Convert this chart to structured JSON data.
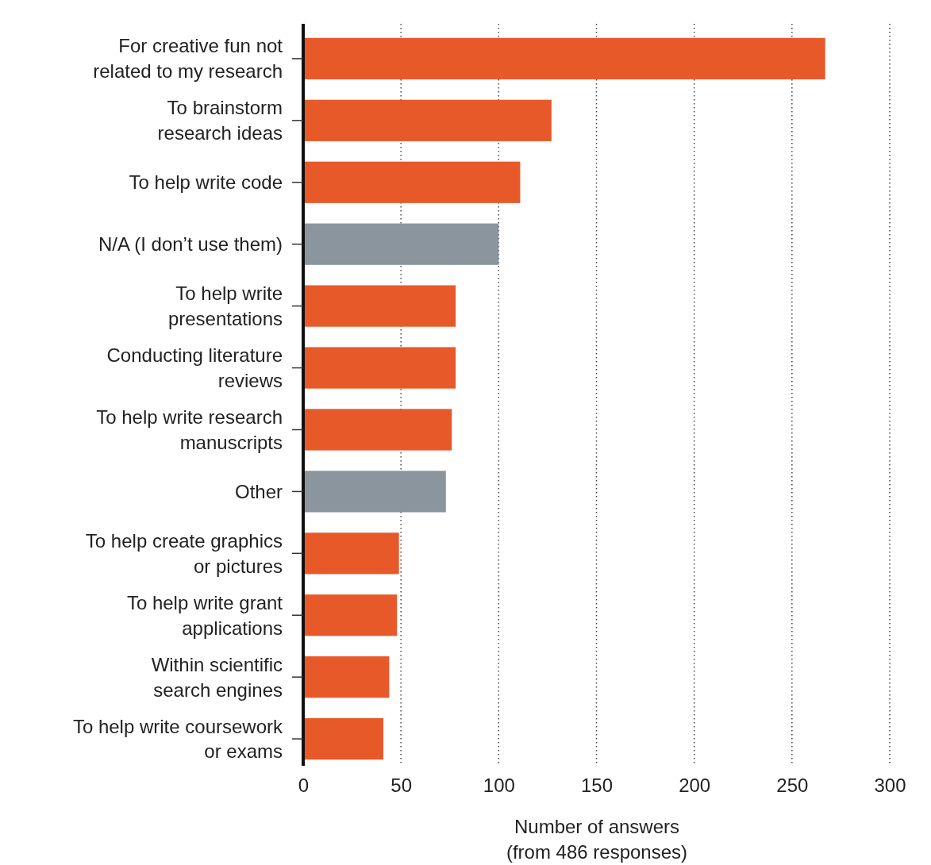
{
  "chart_data": {
    "type": "bar",
    "orientation": "horizontal",
    "categories": [
      "For creative fun not\nrelated to my research",
      "To brainstorm\nresearch ideas",
      "To help write code",
      "N/A (I don’t use them)",
      "To help write\npresentations",
      "Conducting literature\nreviews",
      "To help write research\nmanuscripts",
      "Other",
      "To help create graphics\nor pictures",
      "To help write grant\napplications",
      "Within scientific\nsearch engines",
      "To help write coursework\nor exams"
    ],
    "values": [
      267,
      127,
      111,
      100,
      78,
      78,
      76,
      73,
      49,
      48,
      44,
      41
    ],
    "colors": [
      "#e8592a",
      "#e8592a",
      "#e8592a",
      "#8a959e",
      "#e8592a",
      "#e8592a",
      "#e8592a",
      "#8a959e",
      "#e8592a",
      "#e8592a",
      "#e8592a",
      "#e8592a"
    ],
    "xlim": [
      0,
      300
    ],
    "xticks": [
      0,
      50,
      100,
      150,
      200,
      250,
      300
    ],
    "xlabel": "Number of answers\n(from 486 responses)",
    "grid": "x"
  }
}
